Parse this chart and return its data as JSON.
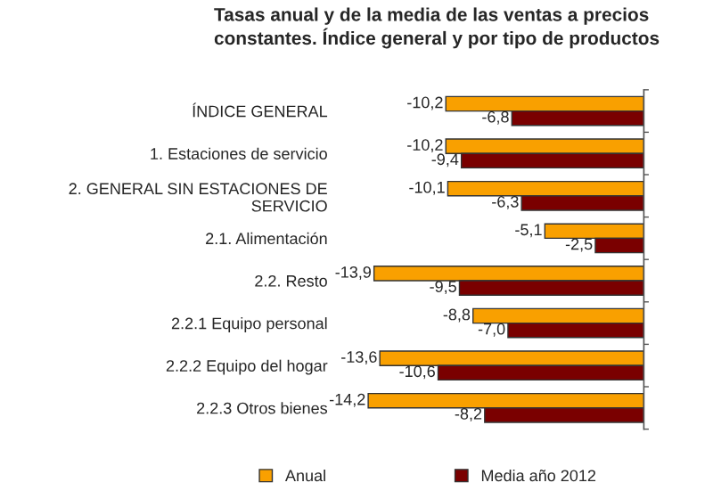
{
  "chart_data": {
    "type": "bar",
    "orientation": "horizontal",
    "relative": false,
    "title": "Tasas anual y de la media de las ventas a precios constantes. Índice general y por tipo de productos",
    "categories": [
      "ÍNDICE GENERAL",
      "1. Estaciones de servicio",
      "2. GENERAL SIN ESTACIONES DE\nSERVICIO",
      "2.1. Alimentación",
      "2.2. Resto",
      "2.2.1 Equipo personal",
      "2.2.2 Equipo del hogar",
      "2.2.3 Otros bienes"
    ],
    "series": [
      {
        "name": "Anual",
        "color": "#f9a000",
        "values": [
          -10.2,
          -10.2,
          -10.1,
          -5.1,
          -13.9,
          -8.8,
          -13.6,
          -14.2
        ],
        "value_labels": [
          "-10,2",
          "-10,2",
          "-10,1",
          "-5,1",
          "-13,9",
          "-8,8",
          "-13,6",
          "-14,2"
        ]
      },
      {
        "name": "Media año 2012",
        "color": "#7a0000",
        "values": [
          -6.8,
          -9.4,
          -6.3,
          -2.5,
          -9.5,
          -7.0,
          -10.6,
          -8.2
        ],
        "value_labels": [
          "-6,8",
          "-9,4",
          "-6,3",
          "-2,5",
          "-9,5",
          "-7,0",
          "-10,6",
          "-8,2"
        ]
      }
    ],
    "legend": "bottom",
    "grid": false
  }
}
